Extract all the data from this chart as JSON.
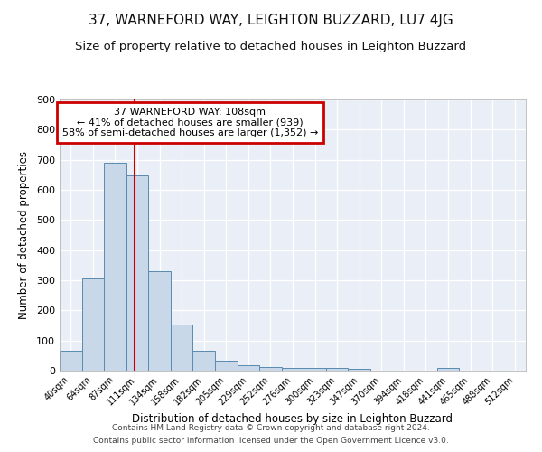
{
  "title1": "37, WARNEFORD WAY, LEIGHTON BUZZARD, LU7 4JG",
  "title2": "Size of property relative to detached houses in Leighton Buzzard",
  "xlabel": "Distribution of detached houses by size in Leighton Buzzard",
  "ylabel": "Number of detached properties",
  "footnote1": "Contains HM Land Registry data © Crown copyright and database right 2024.",
  "footnote2": "Contains public sector information licensed under the Open Government Licence v3.0.",
  "bin_labels": [
    "40sqm",
    "64sqm",
    "87sqm",
    "111sqm",
    "134sqm",
    "158sqm",
    "182sqm",
    "205sqm",
    "229sqm",
    "252sqm",
    "276sqm",
    "300sqm",
    "323sqm",
    "347sqm",
    "370sqm",
    "394sqm",
    "418sqm",
    "441sqm",
    "465sqm",
    "488sqm",
    "512sqm"
  ],
  "bar_values": [
    65,
    307,
    690,
    648,
    330,
    152,
    65,
    33,
    18,
    12,
    10,
    8,
    8,
    5,
    0,
    0,
    0,
    10,
    0,
    0,
    0
  ],
  "bar_color": "#c8d8e8",
  "bar_edge_color": "#5a8ab0",
  "vline_color": "#cc0000",
  "vline_x": 2.88,
  "annotation_line1": "37 WARNEFORD WAY: 108sqm",
  "annotation_line2": "← 41% of detached houses are smaller (939)",
  "annotation_line3": "58% of semi-detached houses are larger (1,352) →",
  "annotation_box_color": "#ffffff",
  "annotation_box_edge": "#cc0000",
  "ylim": [
    0,
    900
  ],
  "yticks": [
    0,
    100,
    200,
    300,
    400,
    500,
    600,
    700,
    800,
    900
  ],
  "bg_color": "#eaeff7",
  "plot_bg_color": "#eaeff7",
  "grid_color": "#ffffff",
  "title1_fontsize": 11,
  "title2_fontsize": 9.5,
  "fig_bg_color": "#ffffff"
}
